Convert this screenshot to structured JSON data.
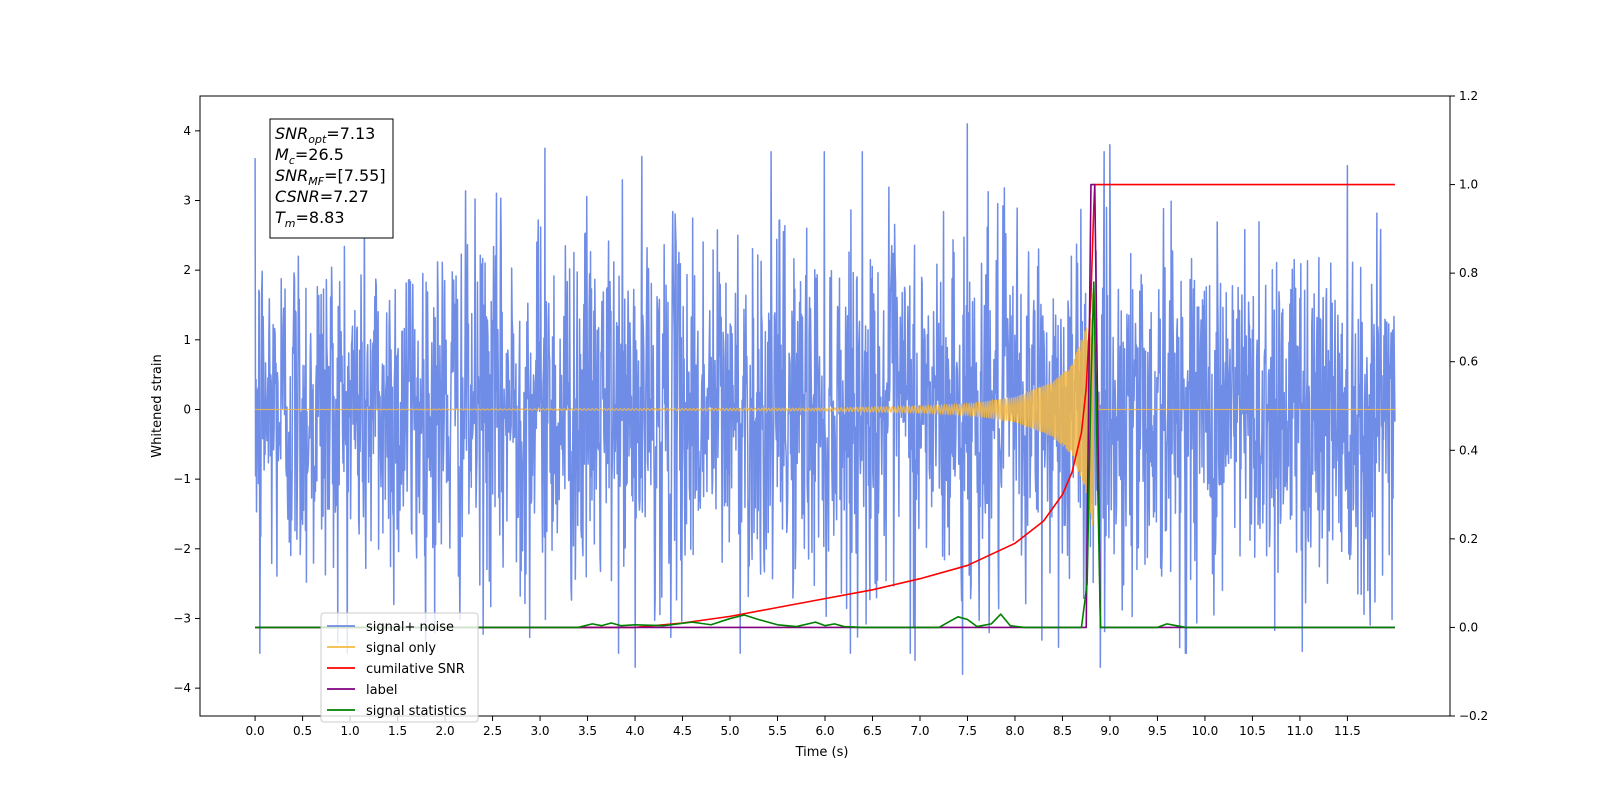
{
  "chart_data": {
    "type": "line",
    "xlabel": "Time (s)",
    "ylabel": "Whitened strain",
    "xlim": [
      -0.58,
      12.58
    ],
    "ylim": [
      -4.4,
      4.5
    ],
    "ylim_right": [
      -0.2,
      1.2
    ],
    "x_ticks": [
      "0.0",
      "0.5",
      "1.0",
      "1.5",
      "2.0",
      "2.5",
      "3.0",
      "3.5",
      "4.0",
      "4.5",
      "5.0",
      "5.5",
      "6.0",
      "6.5",
      "7.0",
      "7.5",
      "8.0",
      "8.5",
      "9.0",
      "9.5",
      "10.0",
      "10.5",
      "11.0",
      "11.5"
    ],
    "y_ticks_left": [
      "−4",
      "−3",
      "−2",
      "−1",
      "0",
      "1",
      "2",
      "3",
      "4"
    ],
    "y_ticks_left_values": [
      -4,
      -3,
      -2,
      -1,
      0,
      1,
      2,
      3,
      4
    ],
    "y_ticks_right": [
      "−0.2",
      "0.0",
      "0.2",
      "0.4",
      "0.6",
      "0.8",
      "1.0",
      "1.2"
    ],
    "y_ticks_right_values": [
      -0.2,
      0.0,
      0.2,
      0.4,
      0.6,
      0.8,
      1.0,
      1.2
    ],
    "grid": false,
    "legend_position": "lower-left",
    "annotation": {
      "lines": [
        {
          "base": "SNR",
          "sub": "opt",
          "rest": "=7.13"
        },
        {
          "base": "M",
          "sub": "c",
          "rest": "=26.5"
        },
        {
          "base": "SNR",
          "sub": "MF",
          "rest": "=[7.55]"
        },
        {
          "base": "CSNR",
          "sub": "",
          "rest": "=7.27"
        },
        {
          "base": "T",
          "sub": "m",
          "rest": "=8.83"
        }
      ]
    },
    "series": [
      {
        "name": "signal+ noise",
        "axis": "left",
        "color": "#6f8ce6",
        "kind": "noise",
        "x_range": [
          0.0,
          12.0
        ],
        "amplitude_std": 1.3,
        "y_min": -3.8,
        "y_max": 4.1,
        "peaks": [
          [
            7.5,
            4.1
          ],
          [
            9.0,
            3.8
          ],
          [
            3.05,
            3.75
          ],
          [
            11.5,
            3.5
          ],
          [
            7.45,
            -3.8
          ],
          [
            4.0,
            -3.7
          ],
          [
            0.05,
            -3.5
          ],
          [
            6.95,
            -3.6
          ],
          [
            8.9,
            -3.7
          ]
        ]
      },
      {
        "name": "signal only",
        "axis": "left",
        "color": "#f5b942",
        "kind": "chirp",
        "merger_time": 8.83,
        "x_range": [
          0.0,
          12.0
        ],
        "envelope": [
          [
            0.0,
            0.0
          ],
          [
            6.0,
            0.02
          ],
          [
            7.0,
            0.05
          ],
          [
            7.5,
            0.08
          ],
          [
            8.0,
            0.18
          ],
          [
            8.4,
            0.4
          ],
          [
            8.6,
            0.65
          ],
          [
            8.75,
            1.2
          ],
          [
            8.83,
            1.8
          ],
          [
            8.88,
            0.0
          ]
        ]
      },
      {
        "name": "cumilative SNR",
        "axis": "right",
        "color": "#ff0000",
        "x": [
          0.0,
          4.0,
          4.5,
          5.0,
          5.5,
          6.0,
          6.5,
          7.0,
          7.5,
          8.0,
          8.3,
          8.5,
          8.6,
          8.7,
          8.75,
          8.8,
          8.83,
          8.84,
          12.0
        ],
        "y": [
          0.0,
          0.0,
          0.01,
          0.025,
          0.045,
          0.065,
          0.085,
          0.11,
          0.14,
          0.19,
          0.24,
          0.3,
          0.35,
          0.44,
          0.54,
          0.75,
          0.95,
          1.0,
          1.0
        ]
      },
      {
        "name": "label",
        "axis": "right",
        "color": "#800080",
        "x": [
          0.0,
          8.75,
          8.8,
          8.84,
          8.9,
          12.0
        ],
        "y": [
          0.0,
          0.0,
          1.0,
          1.0,
          0.0,
          0.0
        ]
      },
      {
        "name": "signal statistics",
        "axis": "right",
        "color": "#008000",
        "x": [
          0.0,
          3.4,
          3.55,
          3.65,
          3.75,
          3.85,
          4.0,
          4.3,
          4.6,
          4.8,
          5.0,
          5.15,
          5.3,
          5.5,
          5.7,
          5.9,
          6.0,
          6.1,
          6.2,
          6.4,
          7.2,
          7.3,
          7.4,
          7.5,
          7.6,
          7.75,
          7.85,
          7.95,
          8.1,
          8.7,
          8.76,
          8.8,
          8.83,
          8.86,
          8.9,
          9.5,
          9.6,
          9.7,
          9.8,
          12.0
        ],
        "y": [
          0.0,
          0.0,
          0.008,
          0.004,
          0.01,
          0.004,
          0.006,
          0.004,
          0.012,
          0.006,
          0.02,
          0.028,
          0.018,
          0.006,
          0.002,
          0.012,
          0.004,
          0.008,
          0.002,
          0.0,
          0.0,
          0.012,
          0.024,
          0.018,
          0.002,
          0.008,
          0.03,
          0.004,
          0.0,
          0.0,
          0.1,
          0.55,
          0.78,
          0.45,
          0.0,
          0.0,
          0.008,
          0.004,
          0.0,
          0.0
        ]
      }
    ],
    "legend": [
      {
        "label": "signal+ noise",
        "color": "#6f8ce6"
      },
      {
        "label": "signal only",
        "color": "#f5b942"
      },
      {
        "label": "cumilative SNR",
        "color": "#ff0000"
      },
      {
        "label": "label",
        "color": "#800080"
      },
      {
        "label": "signal statistics",
        "color": "#008000"
      }
    ]
  }
}
